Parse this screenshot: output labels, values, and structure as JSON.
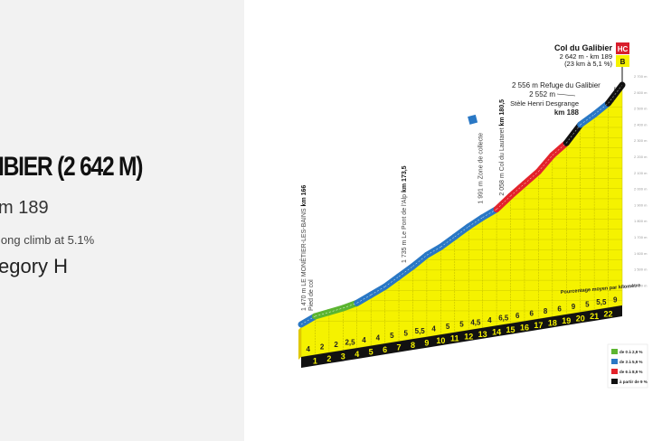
{
  "climb_info": {
    "title": "IBIER (2 642 M)",
    "km": "m 189",
    "description": "long climb at 5.1%",
    "category": "egory H"
  },
  "chart_data": {
    "type": "area",
    "summit": {
      "name": "Col du Galibier",
      "line1": "2 642 m - km 189",
      "line2": "(23 km à 5,1 %)",
      "category_badge": "HC",
      "bonus_badge": "B"
    },
    "start_elevation_m": 1470,
    "km_labels": [
      "1",
      "2",
      "3",
      "4",
      "5",
      "6",
      "7",
      "8",
      "9",
      "10",
      "11",
      "12",
      "13",
      "14",
      "15",
      "16",
      "17",
      "18",
      "19",
      "20",
      "21",
      "22"
    ],
    "gradients": [
      "4",
      "2",
      "2",
      "2,5",
      "4",
      "4",
      "5",
      "5",
      "5,5",
      "4",
      "5",
      "5",
      "4,5",
      "4",
      "6,5",
      "6",
      "6",
      "8",
      "6",
      "9",
      "5",
      "5,5",
      "9"
    ],
    "gradient_values": [
      4,
      2,
      2,
      2.5,
      4,
      4,
      5,
      5,
      5.5,
      4,
      5,
      5,
      4.5,
      4,
      6.5,
      6,
      6,
      8,
      6,
      9,
      5,
      5.5,
      9
    ],
    "gradient_caption": "Pourcentage moyen par kilomètre",
    "annotations": [
      {
        "normal": "1 470 m LE MONÊTIER-LES-BAINS ",
        "bold": "km 166",
        "sub": "Pied de col",
        "seg": 0
      },
      {
        "normal": "1 735 m Le Pont de l'Alp ",
        "bold": "km 173,5",
        "sub": "",
        "seg": 7.5
      },
      {
        "normal": "1 991 m Zone de collecte",
        "bold": "",
        "sub": "",
        "seg": 13
      },
      {
        "normal": "2 058 m Col du Lautaret ",
        "bold": "km 180,5",
        "sub": "",
        "seg": 14.5
      }
    ],
    "top_annotations": {
      "refuge": "2 556 m Refuge du Galibier",
      "stele1": "2 552 m",
      "stele2": "Stèle Henri Desgrange",
      "stele_km": "km 188"
    },
    "y_ticks": [
      "2 700 m",
      "2 600 m",
      "2 500 m",
      "2 400 m",
      "2 300 m",
      "2 200 m",
      "2 100 m",
      "2 000 m",
      "1 900 m",
      "1 800 m",
      "1 700 m",
      "1 600 m",
      "1 500 m",
      "1 400 m"
    ],
    "legend": [
      {
        "label": "de 0 à 2,9 %",
        "color": "#5cb531"
      },
      {
        "label": "de 3 à 5,9 %",
        "color": "#2a78c5"
      },
      {
        "label": "de 6 à 8,9 %",
        "color": "#e3232b"
      },
      {
        "label": "à partir de 9 %",
        "color": "#111111"
      }
    ],
    "fill_color": "#f5f200"
  }
}
